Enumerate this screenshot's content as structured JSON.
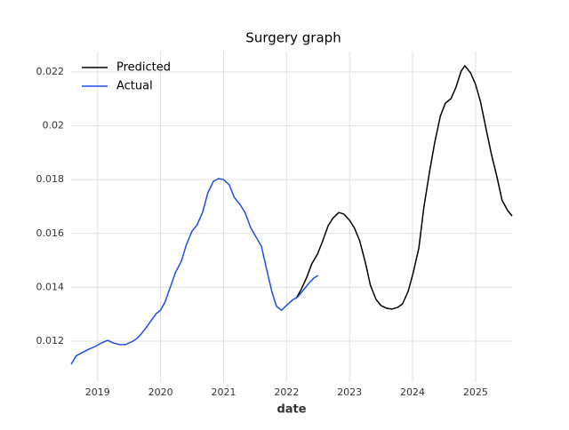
{
  "chart_data": {
    "type": "line",
    "title": "Surgery graph",
    "x_label": "date",
    "xlim": [
      2018.58,
      2025.58
    ],
    "xticks": [
      2019,
      2020,
      2021,
      2022,
      2023,
      2024,
      2025
    ],
    "ylim": [
      0.01048,
      0.02276
    ],
    "yticks": [
      0.012,
      0.014,
      0.016,
      0.018,
      0.02,
      0.022
    ],
    "grid": true,
    "legend": "upper-left",
    "series": [
      {
        "name": "Predicted",
        "color": "#000000",
        "x": [
          2022.15,
          2022.23,
          2022.32,
          2022.4,
          2022.49,
          2022.57,
          2022.66,
          2022.74,
          2022.83,
          2022.91,
          2023.0,
          2023.08,
          2023.16,
          2023.25,
          2023.33,
          2023.42,
          2023.5,
          2023.59,
          2023.67,
          2023.76,
          2023.84,
          2023.93,
          2024.01,
          2024.1,
          2024.18,
          2024.27,
          2024.35,
          2024.44,
          2024.52,
          2024.61,
          2024.69,
          2024.77,
          2024.83,
          2024.92,
          2025.0,
          2025.08,
          2025.17,
          2025.25,
          2025.34,
          2025.42,
          2025.51,
          2025.58
        ],
        "values": [
          0.01358,
          0.01391,
          0.01437,
          0.01487,
          0.01523,
          0.0157,
          0.01629,
          0.01658,
          0.01678,
          0.01672,
          0.01649,
          0.01619,
          0.01573,
          0.01493,
          0.01408,
          0.01355,
          0.01332,
          0.01322,
          0.01319,
          0.01325,
          0.01338,
          0.01385,
          0.01454,
          0.01546,
          0.01698,
          0.0183,
          0.01936,
          0.02035,
          0.02084,
          0.02101,
          0.02144,
          0.02203,
          0.02223,
          0.02197,
          0.02154,
          0.02088,
          0.01985,
          0.01896,
          0.0181,
          0.01724,
          0.01685,
          0.01665
        ]
      },
      {
        "name": "Actual",
        "color": "#1f4ee6",
        "x": [
          2018.58,
          2018.66,
          2018.76,
          2018.86,
          2018.96,
          2019.06,
          2019.16,
          2019.25,
          2019.35,
          2019.44,
          2019.54,
          2019.61,
          2019.68,
          2019.78,
          2019.85,
          2019.93,
          2020.0,
          2020.07,
          2020.16,
          2020.24,
          2020.33,
          2020.41,
          2020.5,
          2020.58,
          2020.67,
          2020.75,
          2020.84,
          2020.92,
          2021.0,
          2021.09,
          2021.17,
          2021.26,
          2021.34,
          2021.43,
          2021.51,
          2021.6,
          2021.68,
          2021.77,
          2021.84,
          2021.92,
          2022.01,
          2022.09,
          2022.18,
          2022.26,
          2022.35,
          2022.43,
          2022.5
        ],
        "values": [
          0.01114,
          0.01145,
          0.01158,
          0.0117,
          0.0118,
          0.01193,
          0.01203,
          0.01193,
          0.01187,
          0.01187,
          0.01197,
          0.01207,
          0.01223,
          0.01253,
          0.01276,
          0.01302,
          0.01315,
          0.01345,
          0.01404,
          0.01457,
          0.01497,
          0.01559,
          0.01609,
          0.01632,
          0.01681,
          0.01751,
          0.01794,
          0.01804,
          0.018,
          0.01781,
          0.01734,
          0.01708,
          0.01678,
          0.01622,
          0.01589,
          0.01553,
          0.0147,
          0.01381,
          0.01329,
          0.01315,
          0.01335,
          0.01352,
          0.01365,
          0.01388,
          0.01414,
          0.01434,
          0.01444
        ]
      }
    ]
  }
}
